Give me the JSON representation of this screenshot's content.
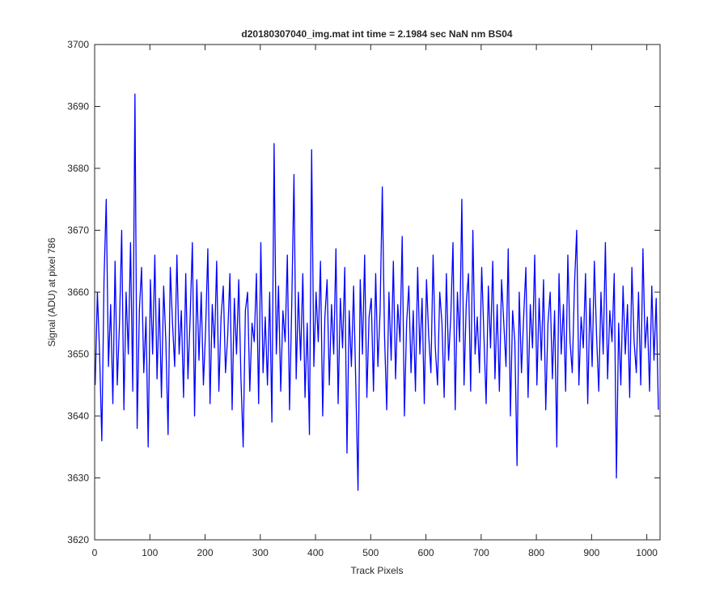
{
  "chart_data": {
    "type": "line",
    "title": "d20180307040_img.mat int time = 2.1984 sec  NaN nm BS04",
    "xlabel": "Track Pixels",
    "ylabel": "Signal (ADU) at pixel 786",
    "color": "#0000ff",
    "xlim": [
      0,
      1024
    ],
    "ylim": [
      3620,
      3700
    ],
    "xticks": [
      0,
      100,
      200,
      300,
      400,
      500,
      600,
      700,
      800,
      900,
      1000
    ],
    "yticks": [
      3620,
      3630,
      3640,
      3650,
      3660,
      3670,
      3680,
      3690,
      3700
    ],
    "grid": false,
    "x": [
      1,
      5,
      9,
      13,
      17,
      21,
      25,
      29,
      33,
      37,
      41,
      45,
      49,
      53,
      57,
      61,
      65,
      69,
      73,
      77,
      81,
      85,
      89,
      93,
      97,
      101,
      105,
      109,
      113,
      117,
      121,
      125,
      129,
      133,
      137,
      141,
      145,
      149,
      153,
      157,
      161,
      165,
      169,
      173,
      177,
      181,
      185,
      189,
      193,
      197,
      201,
      205,
      209,
      213,
      217,
      221,
      225,
      229,
      233,
      237,
      241,
      245,
      249,
      253,
      257,
      261,
      265,
      269,
      273,
      277,
      281,
      285,
      289,
      293,
      297,
      301,
      305,
      309,
      313,
      317,
      321,
      325,
      329,
      333,
      337,
      341,
      345,
      349,
      353,
      357,
      361,
      365,
      369,
      373,
      377,
      381,
      385,
      389,
      393,
      397,
      401,
      405,
      409,
      413,
      417,
      421,
      425,
      429,
      433,
      437,
      441,
      445,
      449,
      453,
      457,
      461,
      465,
      469,
      473,
      477,
      481,
      485,
      489,
      493,
      497,
      501,
      505,
      509,
      513,
      517,
      521,
      525,
      529,
      533,
      537,
      541,
      545,
      549,
      553,
      557,
      561,
      565,
      569,
      573,
      577,
      581,
      585,
      589,
      593,
      597,
      601,
      605,
      609,
      613,
      617,
      621,
      625,
      629,
      633,
      637,
      641,
      645,
      649,
      653,
      657,
      661,
      665,
      669,
      673,
      677,
      681,
      685,
      689,
      693,
      697,
      701,
      705,
      709,
      713,
      717,
      721,
      725,
      729,
      733,
      737,
      741,
      745,
      749,
      753,
      757,
      761,
      765,
      769,
      773,
      777,
      781,
      785,
      789,
      793,
      797,
      801,
      805,
      809,
      813,
      817,
      821,
      825,
      829,
      833,
      837,
      841,
      845,
      849,
      853,
      857,
      861,
      865,
      869,
      873,
      877,
      881,
      885,
      889,
      893,
      897,
      901,
      905,
      909,
      913,
      917,
      921,
      925,
      929,
      933,
      937,
      941,
      945,
      949,
      953,
      957,
      961,
      965,
      969,
      973,
      977,
      981,
      985,
      989,
      993,
      997,
      1001,
      1005,
      1009,
      1013,
      1017,
      1021
    ],
    "values": [
      3645,
      3660,
      3650,
      3636,
      3662,
      3675,
      3648,
      3658,
      3642,
      3665,
      3645,
      3655,
      3670,
      3641,
      3660,
      3650,
      3668,
      3644,
      3692,
      3638,
      3657,
      3664,
      3647,
      3656,
      3635,
      3662,
      3650,
      3666,
      3646,
      3659,
      3643,
      3661,
      3652,
      3637,
      3664,
      3655,
      3648,
      3666,
      3650,
      3657,
      3643,
      3663,
      3646,
      3656,
      3668,
      3640,
      3662,
      3649,
      3660,
      3645,
      3654,
      3667,
      3642,
      3658,
      3651,
      3665,
      3644,
      3656,
      3661,
      3647,
      3653,
      3663,
      3641,
      3659,
      3650,
      3662,
      3646,
      3635,
      3657,
      3660,
      3644,
      3655,
      3652,
      3663,
      3642,
      3668,
      3647,
      3656,
      3645,
      3660,
      3639,
      3684,
      3650,
      3661,
      3644,
      3657,
      3652,
      3666,
      3641,
      3658,
      3679,
      3646,
      3660,
      3649,
      3663,
      3643,
      3655,
      3637,
      3683,
      3648,
      3660,
      3652,
      3665,
      3640,
      3656,
      3662,
      3645,
      3658,
      3650,
      3667,
      3642,
      3659,
      3651,
      3664,
      3634,
      3657,
      3648,
      3661,
      3645,
      3628,
      3662,
      3650,
      3666,
      3643,
      3656,
      3659,
      3644,
      3663,
      3648,
      3657,
      3677,
      3653,
      3641,
      3660,
      3649,
      3665,
      3646,
      3658,
      3652,
      3669,
      3640,
      3655,
      3661,
      3647,
      3657,
      3644,
      3664,
      3650,
      3659,
      3642,
      3662,
      3653,
      3647,
      3666,
      3651,
      3645,
      3660,
      3655,
      3643,
      3663,
      3649,
      3656,
      3668,
      3641,
      3660,
      3652,
      3675,
      3645,
      3658,
      3663,
      3644,
      3670,
      3650,
      3656,
      3647,
      3664,
      3653,
      3642,
      3661,
      3651,
      3665,
      3646,
      3658,
      3644,
      3662,
      3655,
      3648,
      3667,
      3640,
      3657,
      3652,
      3632,
      3660,
      3647,
      3656,
      3664,
      3643,
      3658,
      3651,
      3666,
      3645,
      3659,
      3649,
      3662,
      3641,
      3655,
      3660,
      3646,
      3657,
      3635,
      3663,
      3650,
      3658,
      3644,
      3666,
      3652,
      3647,
      3661,
      3670,
      3645,
      3656,
      3651,
      3663,
      3642,
      3659,
      3648,
      3665,
      3653,
      3644,
      3660,
      3650,
      3668,
      3646,
      3657,
      3652,
      3663,
      3630,
      3655,
      3645,
      3661,
      3650,
      3658,
      3643,
      3664,
      3652,
      3647,
      3660,
      3645,
      3667,
      3651,
      3656,
      3644,
      3661,
      3649,
      3659,
      3641
    ]
  }
}
